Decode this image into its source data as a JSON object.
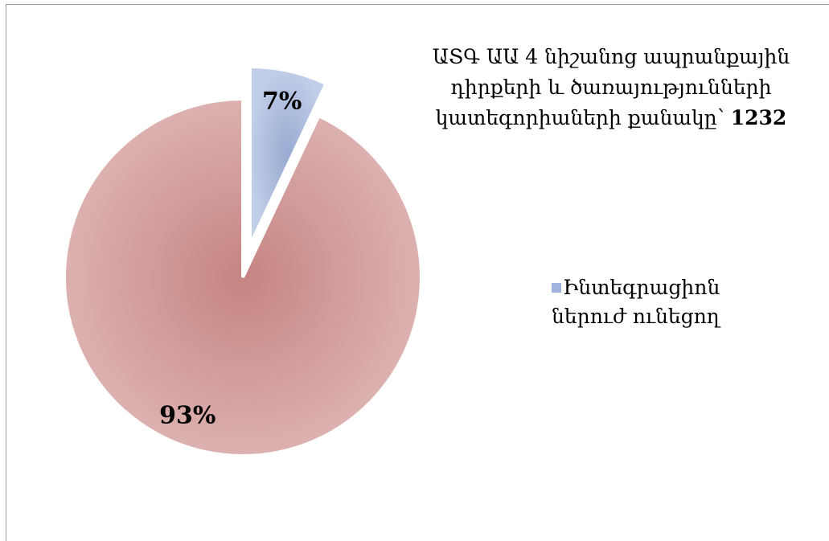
{
  "chart_data": {
    "type": "pie",
    "title": "ԱՏԳ ԱԱ 4 նիշանոց ապրանքային դիրքերի և ծառայությունների կատեգորիաների քանակը՝",
    "total": 1232,
    "categories": [
      "Ինտեգրացիոն ներուժ ունեցող",
      null
    ],
    "values": [
      7,
      93
    ],
    "value_labels": [
      "7%",
      "93%"
    ],
    "colors": [
      "#9fb3dc",
      "#c98784"
    ],
    "legend": "right"
  }
}
